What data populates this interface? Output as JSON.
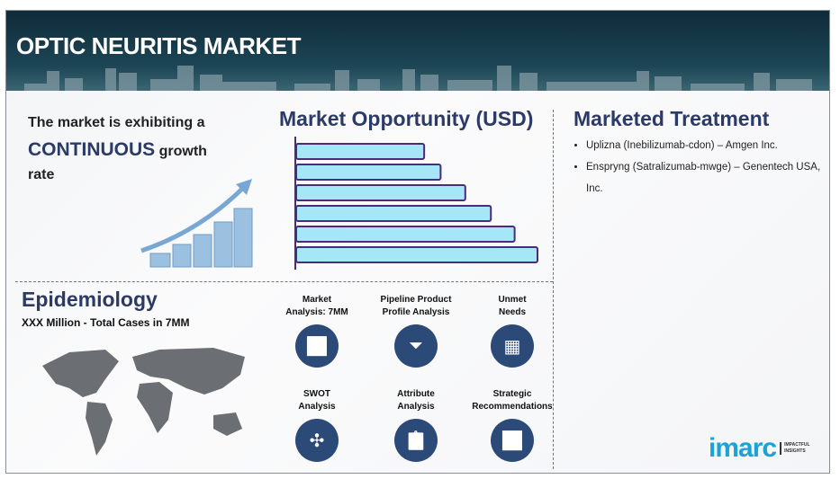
{
  "header": {
    "title": "OPTIC NEURITIS MARKET"
  },
  "growth": {
    "line1": "The market is exhibiting a",
    "emphasis": "CONTINUOUS",
    "line2": " growth",
    "line3": "rate"
  },
  "opportunity": {
    "title": "Market Opportunity (USD)"
  },
  "chart_data": {
    "type": "bar",
    "orientation": "horizontal",
    "title": "Market Opportunity (USD)",
    "values": [
      140,
      158,
      185,
      213,
      239,
      264
    ],
    "bar_color": "#a5e6f7",
    "border_color": "#4b2c7a"
  },
  "treatment": {
    "title": "Marketed Treatment",
    "items": [
      "Uplizna (Inebilizumab-cdon) – Amgen Inc.",
      "Enspryng (Satralizumab-mwge) – Genentech USA, Inc."
    ]
  },
  "epidemiology": {
    "title": "Epidemiology",
    "subtitle": "XXX Million - Total Cases in 7MM"
  },
  "analyses": [
    {
      "l1": "Market",
      "l2": "Analysis: 7MM",
      "icon": "chart-icon"
    },
    {
      "l1": "Pipeline Product",
      "l2": "Profile Analysis",
      "icon": "funnel-icon"
    },
    {
      "l1": "Unmet",
      "l2": "Needs",
      "icon": "maze-icon"
    },
    {
      "l1": "SWOT",
      "l2": "Analysis",
      "icon": "swot-icon"
    },
    {
      "l1": "Attribute",
      "l2": "Analysis",
      "icon": "clipboard-icon"
    },
    {
      "l1": "Strategic",
      "l2": "Recommendations",
      "icon": "growth-icon"
    }
  ],
  "logo": {
    "name": "imarc",
    "tagline1": "IMPACTFUL",
    "tagline2": "INSIGHTS"
  },
  "colors": {
    "navy": "#2c4a78",
    "header": "#1d4656",
    "logo": "#1ba3d6"
  }
}
